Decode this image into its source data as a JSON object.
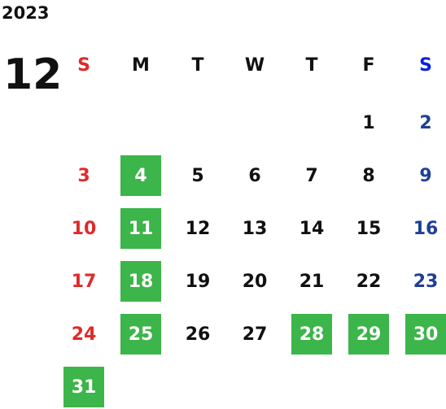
{
  "year": "2023",
  "month": "12",
  "weekdays": [
    "S",
    "M",
    "T",
    "W",
    "T",
    "F",
    "S"
  ],
  "weeks": [
    [
      null,
      null,
      null,
      null,
      null,
      {
        "day": 1
      },
      {
        "day": 2
      }
    ],
    [
      {
        "day": 3
      },
      {
        "day": 4,
        "highlight": true
      },
      {
        "day": 5
      },
      {
        "day": 6
      },
      {
        "day": 7
      },
      {
        "day": 8
      },
      {
        "day": 9
      }
    ],
    [
      {
        "day": 10
      },
      {
        "day": 11,
        "highlight": true
      },
      {
        "day": 12
      },
      {
        "day": 13
      },
      {
        "day": 14
      },
      {
        "day": 15
      },
      {
        "day": 16
      }
    ],
    [
      {
        "day": 17
      },
      {
        "day": 18,
        "highlight": true
      },
      {
        "day": 19
      },
      {
        "day": 20
      },
      {
        "day": 21
      },
      {
        "day": 22
      },
      {
        "day": 23
      }
    ],
    [
      {
        "day": 24
      },
      {
        "day": 25,
        "highlight": true
      },
      {
        "day": 26
      },
      {
        "day": 27
      },
      {
        "day": 28,
        "highlight": true
      },
      {
        "day": 29,
        "highlight": true
      },
      {
        "day": 30,
        "highlight": true
      }
    ],
    [
      {
        "day": 31,
        "highlight": true
      },
      null,
      null,
      null,
      null,
      null,
      null
    ]
  ]
}
